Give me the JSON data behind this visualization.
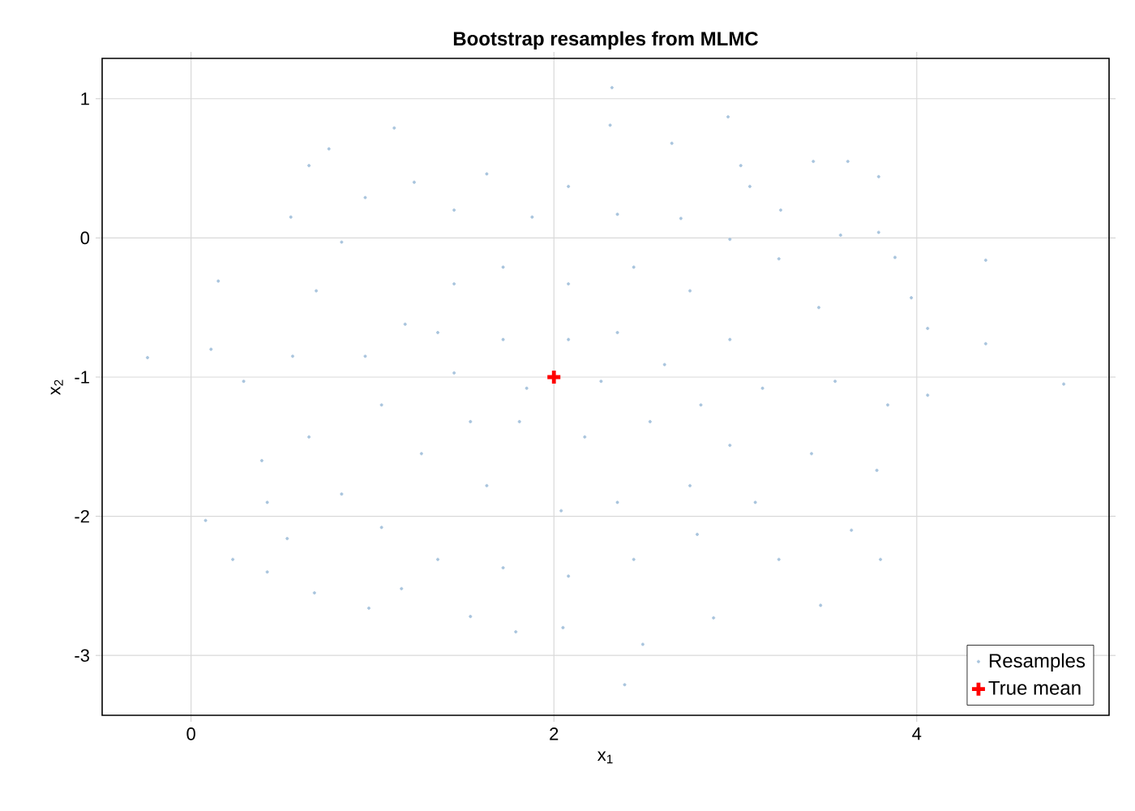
{
  "chart_data": {
    "type": "scatter",
    "title": "Bootstrap resamples from MLMC",
    "xlabel": "x$_{1}$",
    "ylabel": "x$_{2}$",
    "xlim": [
      -0.49,
      5.06
    ],
    "ylim": [
      -3.43,
      1.29
    ],
    "xticks": [
      0,
      2,
      4
    ],
    "yticks": [
      -3,
      -2,
      -1,
      0,
      1
    ],
    "grid": true,
    "legend": "bottom right",
    "series": [
      {
        "name": "Resamples",
        "marker": "circle",
        "color": "#a8c4dd",
        "x": [
          -0.24,
          0.08,
          0.23,
          0.15,
          0.11,
          2.32,
          2.31,
          1.12,
          0.76,
          2.96,
          2.65,
          4.38,
          4.06,
          4.06,
          4.38,
          4.81,
          3.8,
          3.47,
          2.39,
          2.49,
          1.79,
          0.98,
          0.68,
          0.42,
          3.62,
          3.79,
          3.79,
          3.88,
          3.97,
          3.84,
          3.58,
          3.43,
          3.03,
          0.65,
          0.55,
          0.29,
          0.39,
          0.42,
          0.53,
          1.16,
          1.54,
          2.05,
          2.88,
          3.24,
          3.64,
          3.78,
          3.25,
          3.08,
          2.08,
          1.63,
          1.23,
          0.96,
          1.45,
          1.88,
          2.35,
          2.7,
          0.83,
          0.69,
          0.56,
          0.65,
          0.83,
          1.05,
          1.36,
          1.72,
          2.08,
          2.44,
          2.79,
          3.11,
          3.42,
          3.55,
          3.46,
          3.24,
          2.97,
          1.18,
          1.45,
          1.72,
          2.08,
          2.44,
          2.75,
          2.97,
          3.15,
          2.97,
          2.75,
          2.35,
          2.04,
          1.63,
          1.27,
          1.05,
          0.96,
          1.45,
          1.72,
          2.08,
          2.35,
          2.61,
          2.53,
          2.17,
          1.81,
          1.54,
          1.85,
          2.26,
          2.81,
          1.36
        ],
        "values": [
          -0.86,
          -2.03,
          -2.31,
          -0.31,
          -0.8,
          1.08,
          0.81,
          0.79,
          0.64,
          0.87,
          0.68,
          -0.16,
          -0.65,
          -1.13,
          -0.76,
          -1.05,
          -2.31,
          -2.64,
          -3.21,
          -2.92,
          -2.83,
          -2.66,
          -2.55,
          -2.4,
          0.55,
          0.44,
          0.04,
          -0.14,
          -0.43,
          -1.2,
          0.02,
          0.55,
          0.52,
          0.52,
          0.15,
          -1.03,
          -1.6,
          -1.9,
          -2.16,
          -2.52,
          -2.72,
          -2.8,
          -2.73,
          -2.31,
          -2.1,
          -1.67,
          0.2,
          0.37,
          0.37,
          0.46,
          0.4,
          0.29,
          0.2,
          0.15,
          0.17,
          0.14,
          -0.03,
          -0.38,
          -0.85,
          -1.43,
          -1.84,
          -2.08,
          -2.31,
          -2.37,
          -2.43,
          -2.31,
          -2.13,
          -1.9,
          -1.55,
          -1.03,
          -0.5,
          -0.15,
          -0.01,
          -0.62,
          -0.33,
          -0.21,
          -0.33,
          -0.21,
          -0.38,
          -0.73,
          -1.08,
          -1.49,
          -1.78,
          -1.9,
          -1.96,
          -1.78,
          -1.55,
          -1.2,
          -0.85,
          -0.97,
          -0.73,
          -0.73,
          -0.68,
          -0.91,
          -1.32,
          -1.43,
          -1.32,
          -1.32,
          -1.08,
          -1.03,
          -1.2,
          -0.68
        ]
      },
      {
        "name": "True mean",
        "marker": "cross",
        "color": "#ff0000",
        "x": [
          2
        ],
        "values": [
          -1
        ]
      }
    ]
  }
}
